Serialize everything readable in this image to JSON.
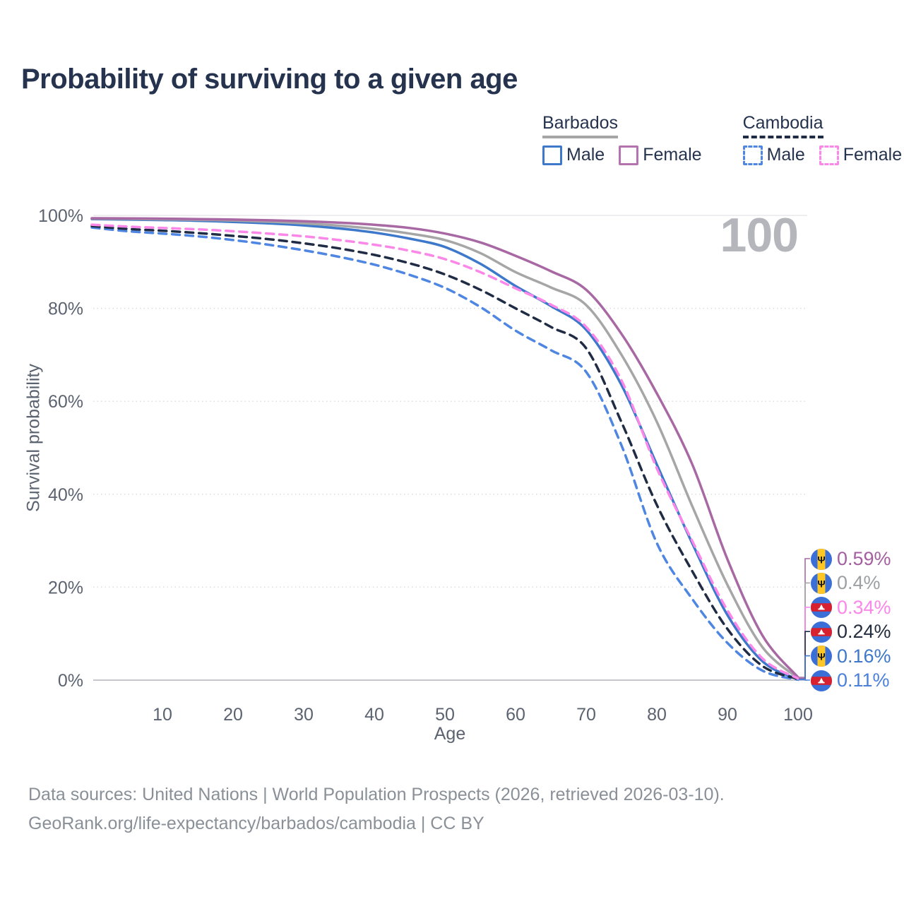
{
  "title": "Probability of surviving to a given age",
  "watermark": "100",
  "legend": {
    "groups": [
      {
        "country": "Barbados",
        "line_style": "solid",
        "underline_color": "#a6a6a6",
        "items": [
          {
            "label": "Male",
            "color": "#3d78ca"
          },
          {
            "label": "Female",
            "color": "#b273ae"
          }
        ]
      },
      {
        "country": "Cambodia",
        "line_style": "dashed",
        "underline_color": "#202c44",
        "items": [
          {
            "label": "Male",
            "color": "#4e86e2"
          },
          {
            "label": "Female",
            "color": "#fb87e9"
          }
        ]
      }
    ]
  },
  "chart_data": {
    "type": "line",
    "title": "Probability of surviving to a given age",
    "xlabel": "Age",
    "ylabel": "Survival probability",
    "xlim": [
      0,
      100
    ],
    "ylim": [
      0,
      100
    ],
    "grid": "horizontal-dotted",
    "x_ticks": [
      10,
      20,
      30,
      40,
      50,
      60,
      70,
      80,
      90,
      100
    ],
    "y_tick_labels": [
      "0%",
      "20%",
      "40%",
      "60%",
      "80%",
      "100%"
    ],
    "x": [
      0,
      5,
      10,
      15,
      20,
      25,
      30,
      35,
      40,
      45,
      50,
      55,
      60,
      65,
      70,
      75,
      80,
      85,
      90,
      95,
      100
    ],
    "series": [
      {
        "name": "Barbados Male",
        "country": "Barbados",
        "sex": "Male",
        "flag": "barbados",
        "color": "#3d78ca",
        "dashed": false,
        "end_label": "0.16%",
        "end_label_color": "#3d78ca",
        "values": [
          99.2,
          99.1,
          99.0,
          98.85,
          98.6,
          98.3,
          97.85,
          97.2,
          96.3,
          95.0,
          93.2,
          89.6,
          84.8,
          80.5,
          75.4,
          63.5,
          46.4,
          29.5,
          14.0,
          4.0,
          0.16
        ]
      },
      {
        "name": "Barbados Both sexes",
        "country": "Barbados",
        "sex": "Both",
        "flag": "barbados",
        "color": "#a6a6a6",
        "dashed": false,
        "end_label": "0.4%",
        "end_label_color": "#9da0a3",
        "values": [
          99.3,
          99.25,
          99.15,
          99.05,
          98.9,
          98.65,
          98.3,
          97.8,
          97.1,
          96.1,
          94.7,
          91.9,
          87.8,
          84.5,
          80.7,
          70.0,
          55.6,
          37.5,
          20.5,
          7.0,
          0.4
        ]
      },
      {
        "name": "Barbados Female",
        "country": "Barbados",
        "sex": "Female",
        "flag": "barbados",
        "color": "#a868a4",
        "dashed": false,
        "end_label": "0.59%",
        "end_label_color": "#a45fa0",
        "values": [
          99.4,
          99.35,
          99.3,
          99.2,
          99.1,
          98.95,
          98.75,
          98.45,
          98.0,
          97.3,
          96.1,
          94.2,
          91.3,
          88.0,
          84.0,
          74.5,
          61.7,
          46.5,
          26.0,
          9.5,
          0.59
        ]
      },
      {
        "name": "Cambodia Male",
        "country": "Cambodia",
        "sex": "Male",
        "flag": "cambodia",
        "color": "#4e86e2",
        "dashed": true,
        "end_label": "0.11%",
        "end_label_color": "#4b80da",
        "values": [
          97.4,
          96.6,
          96.1,
          95.5,
          94.7,
          93.7,
          92.5,
          91.1,
          89.4,
          87.2,
          84.4,
          80.3,
          75.2,
          71.0,
          66.3,
          50.5,
          29.5,
          17.5,
          8.0,
          2.0,
          0.11
        ]
      },
      {
        "name": "Cambodia Both sexes",
        "country": "Cambodia",
        "sex": "Both",
        "flag": "cambodia",
        "color": "#202c44",
        "dashed": true,
        "end_label": "0.24%",
        "end_label_color": "#232d3e",
        "values": [
          97.7,
          97.1,
          96.7,
          96.2,
          95.6,
          94.9,
          94.0,
          92.9,
          91.5,
          89.7,
          87.3,
          84.0,
          80.0,
          76.0,
          71.4,
          55.5,
          37.7,
          23.5,
          11.0,
          3.0,
          0.24
        ]
      },
      {
        "name": "Cambodia Female",
        "country": "Cambodia",
        "sex": "Female",
        "flag": "cambodia",
        "color": "#fb87e9",
        "dashed": true,
        "end_label": "0.34%",
        "end_label_color": "#fb87e9",
        "values": [
          98.0,
          97.6,
          97.3,
          97.0,
          96.6,
          96.1,
          95.5,
          94.7,
          93.7,
          92.4,
          90.6,
          87.8,
          84.3,
          80.8,
          76.0,
          64.5,
          45.6,
          30.0,
          15.0,
          4.6,
          0.34
        ]
      }
    ]
  },
  "footer": {
    "line1": "Data sources: United Nations | World Population Prospects (2026, retrieved 2026-03-10).",
    "line2": "GeoRank.org/life-expectancy/barbados/cambodia | CC BY"
  }
}
